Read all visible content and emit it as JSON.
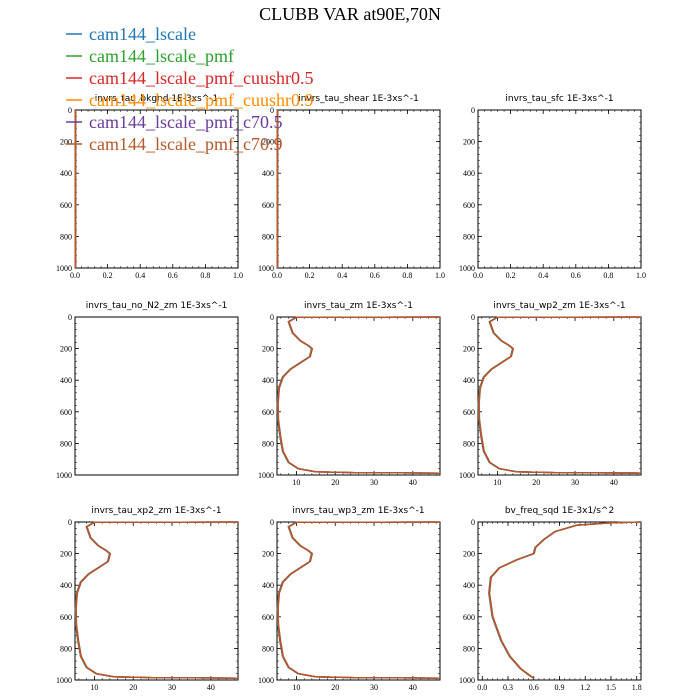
{
  "figure_title": "CLUBB VAR at90E,70N",
  "legend": [
    {
      "label": "cam144_lscale",
      "color": "#1f77b4"
    },
    {
      "label": "cam144_lscale_pmf",
      "color": "#2ca02c"
    },
    {
      "label": "cam144_lscale_pmf_cuushr0.5",
      "color": "#d62728"
    },
    {
      "label": "cam144_lscale_pmf_cuushr0.9",
      "color": "#ff8c00"
    },
    {
      "label": "cam144_lscale_pmf_c70.5",
      "color": "#6a3d9a"
    },
    {
      "label": "cam144_lscale_pmf_c70.9",
      "color": "#b5582a"
    }
  ],
  "chart_data": [
    {
      "type": "line",
      "title": "invrs_tau_bkgnd   1E-3xs^-1",
      "xlim": [
        0,
        1
      ],
      "ylim": [
        0,
        1000
      ],
      "yreversed": true,
      "xticks": [
        "0.0",
        "0.2",
        "0.4",
        "0.6",
        "0.8",
        "1.0"
      ],
      "yticks": [
        "0",
        "200",
        "400",
        "600",
        "800",
        "1000"
      ],
      "profile": "zero",
      "series": []
    },
    {
      "type": "line",
      "title": "invrs_tau_shear   1E-3xs^-1",
      "xlim": [
        0,
        1
      ],
      "ylim": [
        0,
        1000
      ],
      "yreversed": true,
      "xticks": [
        "0.0",
        "0.2",
        "0.4",
        "0.6",
        "0.8",
        "1.0"
      ],
      "yticks": [
        "0",
        "200",
        "400",
        "600",
        "800",
        "1000"
      ],
      "profile": "zero",
      "series": []
    },
    {
      "type": "line",
      "title": "invrs_tau_sfc   1E-3xs^-1",
      "xlim": [
        0,
        1
      ],
      "ylim": [
        0,
        1000
      ],
      "yreversed": true,
      "xticks": [
        "0.0",
        "0.2",
        "0.4",
        "0.6",
        "0.8",
        "1.0"
      ],
      "yticks": [
        "0",
        "200",
        "400",
        "600",
        "800",
        "1000"
      ],
      "profile": "none",
      "series": []
    },
    {
      "type": "line",
      "title": "invrs_tau_no_N2_zm   1E-3xs^-1",
      "xlim": [
        0,
        1
      ],
      "ylim": [
        0,
        1000
      ],
      "yreversed": true,
      "xticks": [],
      "yticks": [
        "0",
        "200",
        "400",
        "600",
        "800",
        "1000"
      ],
      "profile": "none",
      "series": []
    },
    {
      "type": "line",
      "title": "invrs_tau_zm   1E-3xs^-1",
      "xlim": [
        5,
        47
      ],
      "ylim": [
        0,
        1000
      ],
      "yreversed": true,
      "xticks": [
        "10",
        "20",
        "30",
        "40"
      ],
      "yticks": [
        "0",
        "200",
        "400",
        "600",
        "800",
        "1000"
      ],
      "profile": "tau",
      "x": [
        47,
        10,
        8,
        9,
        11,
        13,
        14,
        13.5,
        11,
        8.5,
        6.5,
        5.5,
        5.2,
        5.3,
        5.8,
        6.5,
        8,
        10.5,
        15,
        25,
        47
      ],
      "y": [
        0,
        2,
        30,
        100,
        150,
        180,
        200,
        250,
        290,
        330,
        380,
        450,
        550,
        650,
        750,
        850,
        920,
        960,
        980,
        985,
        988
      ]
    },
    {
      "type": "line",
      "title": "invrs_tau_wp2_zm   1E-3xs^-1",
      "xlim": [
        5,
        47
      ],
      "ylim": [
        0,
        1000
      ],
      "yreversed": true,
      "xticks": [
        "10",
        "20",
        "30",
        "40"
      ],
      "yticks": [
        "0",
        "200",
        "400",
        "600",
        "800",
        "1000"
      ],
      "profile": "tau",
      "x": [
        47,
        10,
        8,
        9,
        11,
        13,
        14,
        13.5,
        11,
        8.5,
        6.5,
        5.5,
        5.2,
        5.3,
        5.8,
        6.5,
        8,
        10.5,
        15,
        25,
        47
      ],
      "y": [
        0,
        2,
        30,
        100,
        150,
        180,
        200,
        250,
        290,
        330,
        380,
        450,
        550,
        650,
        750,
        850,
        920,
        960,
        980,
        985,
        988
      ]
    },
    {
      "type": "line",
      "title": "invrs_tau_xp2_zm   1E-3xs^-1",
      "xlim": [
        5,
        47
      ],
      "ylim": [
        0,
        1000
      ],
      "yreversed": true,
      "xticks": [
        "10",
        "20",
        "30",
        "40"
      ],
      "yticks": [
        "0",
        "200",
        "400",
        "600",
        "800",
        "1000"
      ],
      "profile": "tau",
      "x": [
        47,
        10,
        8,
        9,
        11,
        13,
        14,
        13.5,
        11,
        8.5,
        6.5,
        5.5,
        5.2,
        5.3,
        5.8,
        6.5,
        8,
        10.5,
        15,
        25,
        47
      ],
      "y": [
        0,
        2,
        30,
        100,
        150,
        180,
        200,
        250,
        290,
        330,
        380,
        450,
        550,
        650,
        750,
        850,
        920,
        960,
        980,
        985,
        988
      ]
    },
    {
      "type": "line",
      "title": "invrs_tau_wp3_zm   1E-3xs^-1",
      "xlim": [
        5,
        47
      ],
      "ylim": [
        0,
        1000
      ],
      "yreversed": true,
      "xticks": [
        "10",
        "20",
        "30",
        "40"
      ],
      "yticks": [
        "0",
        "200",
        "400",
        "600",
        "800",
        "1000"
      ],
      "profile": "tau",
      "x": [
        47,
        10,
        8,
        9,
        11,
        13,
        14,
        13.5,
        11,
        8.5,
        6.5,
        5.5,
        5.2,
        5.3,
        5.8,
        6.5,
        8,
        10.5,
        15,
        25,
        47
      ],
      "y": [
        0,
        2,
        30,
        100,
        150,
        180,
        200,
        250,
        290,
        330,
        380,
        450,
        550,
        650,
        750,
        850,
        920,
        960,
        980,
        985,
        988
      ]
    },
    {
      "type": "line",
      "title": "bv_freq_sqd   1E-3x1/s^2",
      "xlim": [
        -0.05,
        1.85
      ],
      "ylim": [
        0,
        1000
      ],
      "yreversed": true,
      "xticks": [
        "0.0",
        "0.3",
        "0.6",
        "0.9",
        "1.2",
        "1.5",
        "1.8"
      ],
      "yticks": [
        "0",
        "200",
        "400",
        "600",
        "800",
        "1000"
      ],
      "profile": "bv",
      "x": [
        1.85,
        1.5,
        1.1,
        0.85,
        0.72,
        0.62,
        0.6,
        0.4,
        0.2,
        0.1,
        0.08,
        0.12,
        0.22,
        0.32,
        0.45,
        0.55,
        0.6
      ],
      "y": [
        0,
        5,
        20,
        60,
        110,
        160,
        200,
        240,
        290,
        350,
        450,
        600,
        750,
        850,
        930,
        970,
        990
      ]
    }
  ]
}
